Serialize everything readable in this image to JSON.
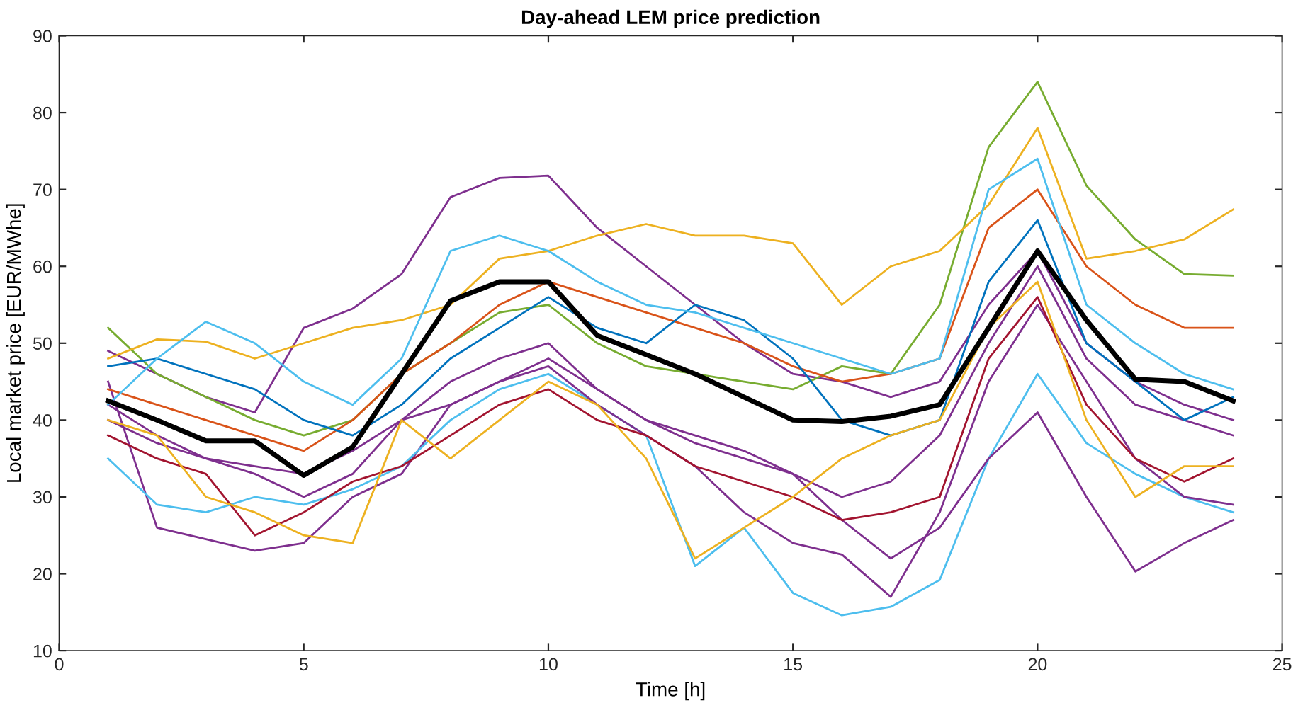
{
  "chart_data": {
    "type": "line",
    "title": "Day-ahead LEM price prediction",
    "xlabel": "Time [h]",
    "ylabel": "Local market price [EUR/MWhe]",
    "x": [
      1,
      2,
      3,
      4,
      5,
      6,
      7,
      8,
      9,
      10,
      11,
      12,
      13,
      14,
      15,
      16,
      17,
      18,
      19,
      20,
      21,
      22,
      23,
      24
    ],
    "xlim": [
      0,
      25
    ],
    "xticks": [
      0,
      5,
      10,
      15,
      20,
      25
    ],
    "ylim": [
      10,
      90
    ],
    "yticks": [
      10,
      20,
      30,
      40,
      50,
      60,
      70,
      80,
      90
    ],
    "grid": false,
    "line_style": "solid",
    "marker": "none",
    "series": [
      {
        "color": "#7e2f8e",
        "values": [
          49,
          46,
          43,
          41,
          52,
          54.5,
          59,
          69,
          71.5,
          71.8,
          65,
          60,
          55,
          50,
          46,
          45,
          43,
          45,
          55,
          62,
          50,
          45,
          42,
          40
        ]
      },
      {
        "color": "#7e2f8e",
        "values": [
          45,
          26,
          24.5,
          23,
          24,
          30,
          33,
          42,
          45,
          48,
          44,
          40,
          37,
          35,
          33,
          30,
          32,
          38,
          50,
          60,
          48,
          42,
          40,
          38
        ]
      },
      {
        "color": "#4dbeee",
        "values": [
          35,
          29,
          28,
          30,
          29,
          31,
          34,
          40,
          44,
          46,
          42,
          38,
          21,
          26,
          17.5,
          14.6,
          15.7,
          19.2,
          35,
          46,
          37,
          33,
          30,
          28
        ]
      },
      {
        "color": "#77ac30",
        "values": [
          52,
          46,
          43,
          40,
          38,
          40,
          46,
          50,
          54,
          55,
          50,
          47,
          46,
          45,
          44,
          47,
          46,
          55,
          75.5,
          84,
          70.5,
          63.5,
          59,
          58.8
        ]
      },
      {
        "color": "#edb120",
        "values": [
          48,
          50.5,
          50.2,
          48,
          50,
          52,
          53,
          55,
          61,
          62,
          64,
          65.5,
          64,
          64,
          63,
          55,
          60,
          62,
          68,
          78,
          61,
          62,
          63.5,
          67.4
        ]
      },
      {
        "color": "#7e2f8e",
        "values": [
          40,
          37,
          35,
          34,
          33,
          36,
          40,
          45,
          48,
          50,
          44,
          40,
          38,
          36,
          33,
          27,
          22,
          26,
          35,
          41,
          30,
          20.3,
          24,
          27
        ]
      },
      {
        "color": "#7e2f8e",
        "values": [
          42,
          38,
          35,
          33,
          30,
          33,
          40,
          42,
          45,
          47,
          42,
          38,
          34,
          28,
          24,
          22.5,
          17,
          28,
          45,
          55,
          45,
          35,
          30,
          29
        ]
      },
      {
        "color": "#d95319",
        "values": [
          44,
          42,
          40,
          38,
          36,
          40,
          46,
          50,
          55,
          58,
          56,
          54,
          52,
          50,
          47,
          45,
          46,
          48,
          65,
          70,
          60,
          55,
          52,
          52
        ]
      },
      {
        "color": "#0072bd",
        "values": [
          47,
          48,
          46,
          44,
          40,
          38,
          42,
          48,
          52,
          56,
          52,
          50,
          55,
          53,
          48,
          40,
          38,
          40,
          58,
          66,
          50,
          45,
          40,
          43
        ]
      },
      {
        "color": "#4dbeee",
        "values": [
          42,
          48,
          52.8,
          50,
          45,
          42,
          48,
          62,
          64,
          62,
          58,
          55,
          54,
          52,
          50,
          48,
          46,
          48,
          70,
          74,
          55,
          50,
          46,
          44
        ]
      },
      {
        "color": "#a2142f",
        "values": [
          38,
          35,
          33,
          25,
          28,
          32,
          34,
          38,
          42,
          44,
          40,
          38,
          34,
          32,
          30,
          27,
          28,
          30,
          48,
          56,
          42,
          35,
          32,
          35
        ]
      },
      {
        "color": "#edb120",
        "values": [
          40,
          38,
          30,
          28,
          25,
          24,
          40,
          35,
          40,
          45,
          42,
          35,
          22,
          26,
          30,
          35,
          38,
          40,
          52,
          58,
          40,
          30,
          34,
          34
        ]
      },
      {
        "color": "#000000",
        "values": [
          42.5,
          40,
          37.3,
          37.3,
          32.8,
          36.5,
          46,
          55.5,
          58,
          58,
          51,
          48.5,
          46,
          43,
          40,
          39.8,
          40.5,
          42,
          52,
          62,
          53,
          45.3,
          45,
          42.5
        ]
      }
    ]
  }
}
